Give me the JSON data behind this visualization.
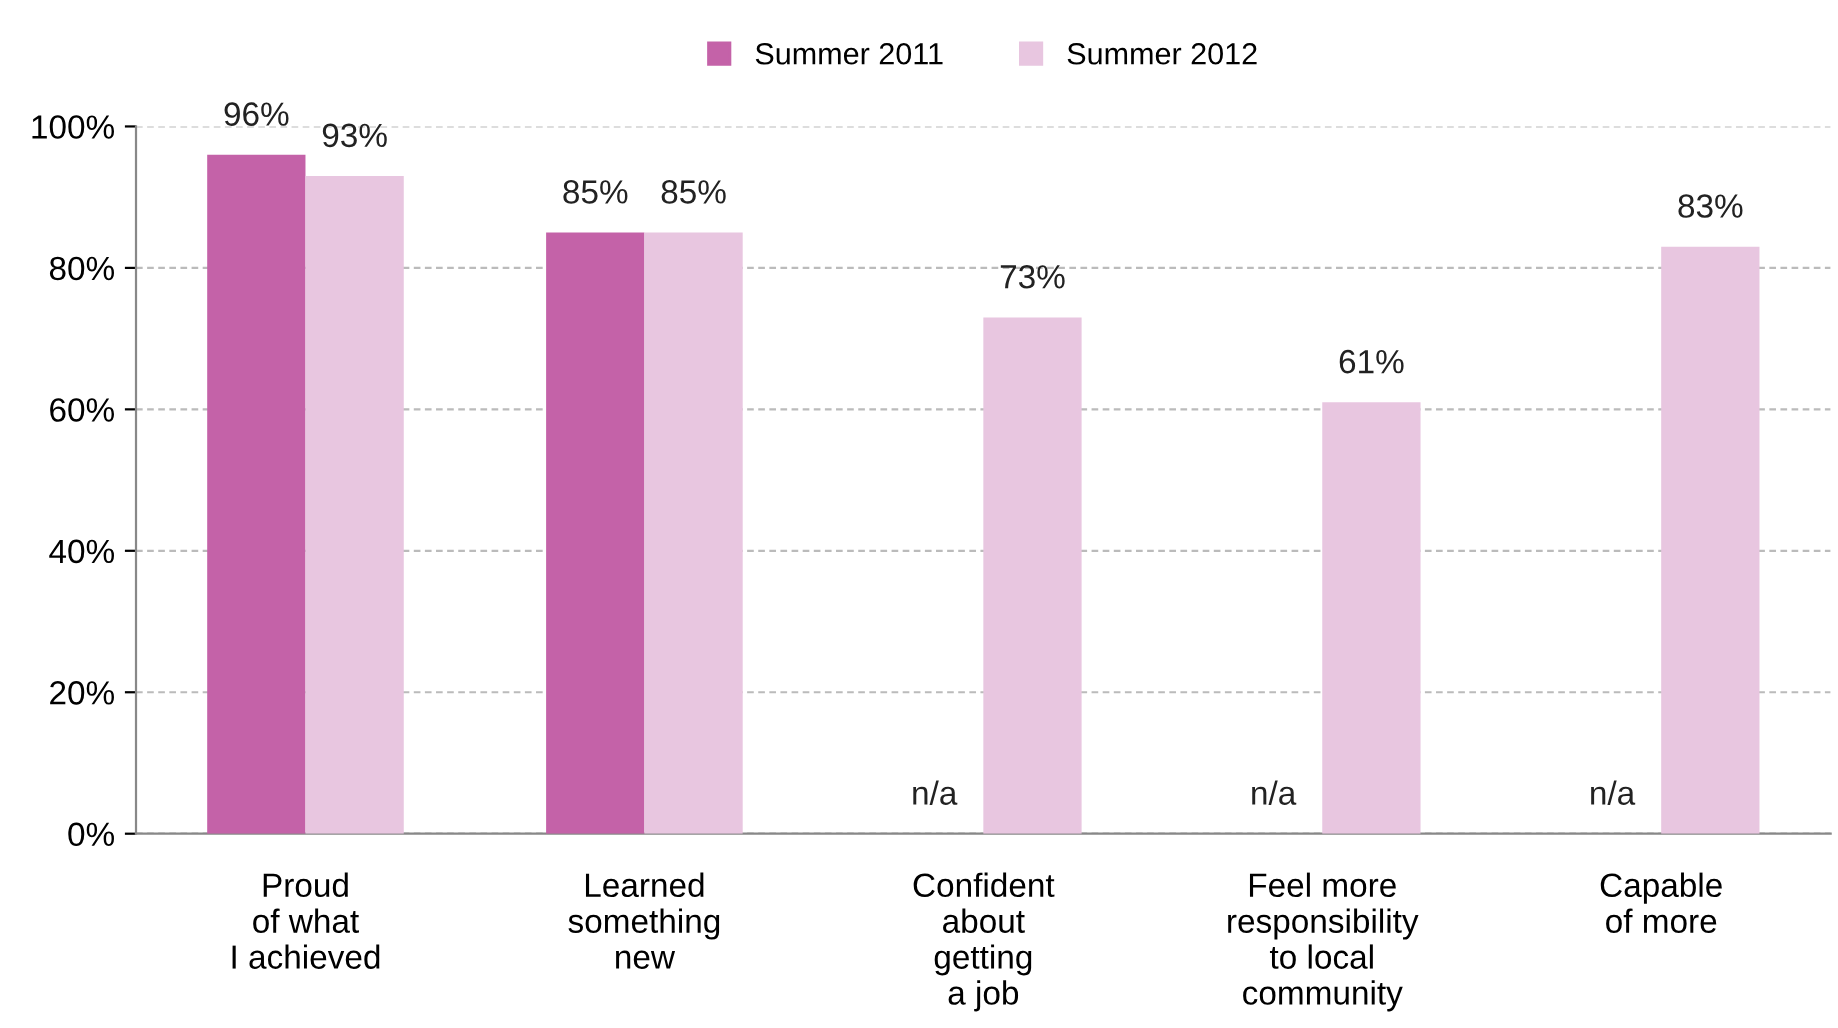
{
  "chart_data": {
    "type": "bar",
    "categories": [
      "Proud\nof what\nI achieved",
      "Learned\nsomething\nnew",
      "Confident\nabout\ngetting\na job",
      "Feel more\nresponsibility\nto local\ncommunity",
      "Capable\nof more"
    ],
    "series": [
      {
        "name": "Summer 2011",
        "color": "#c462a8",
        "values": [
          96,
          85,
          null,
          null,
          null
        ],
        "value_labels": [
          "96%",
          "85%",
          "n/a",
          "n/a",
          "n/a"
        ]
      },
      {
        "name": "Summer 2012",
        "color": "#e8c6e0",
        "values": [
          93,
          85,
          73,
          61,
          83
        ],
        "value_labels": [
          "93%",
          "85%",
          "73%",
          "61%",
          "83%"
        ]
      }
    ],
    "ylim": [
      0,
      100
    ],
    "yticks": [
      {
        "value": 0,
        "label": "0%"
      },
      {
        "value": 20,
        "label": "20%"
      },
      {
        "value": 40,
        "label": "40%"
      },
      {
        "value": 60,
        "label": "60%"
      },
      {
        "value": 80,
        "label": "80%"
      },
      {
        "value": 100,
        "label": "100%"
      }
    ],
    "grid": "y",
    "legend": "top"
  }
}
